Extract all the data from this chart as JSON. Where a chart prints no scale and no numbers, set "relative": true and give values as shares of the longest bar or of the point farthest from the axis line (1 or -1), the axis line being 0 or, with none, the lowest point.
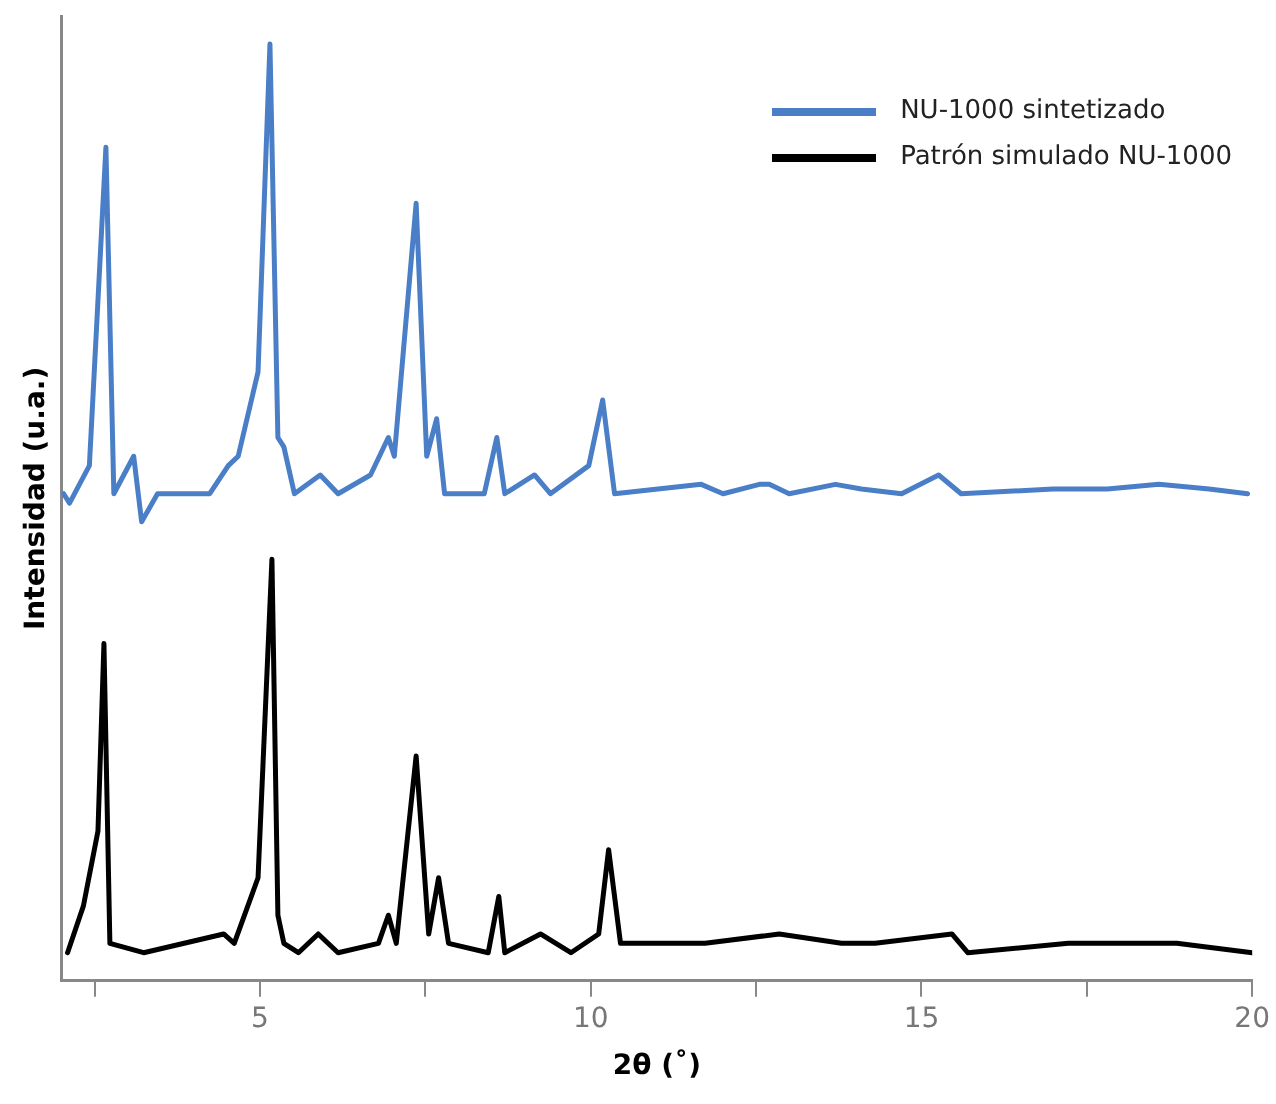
{
  "chart_data": {
    "type": "line",
    "relative": true,
    "xlabel": "2θ (˚)",
    "ylabel": "Intensidad (u.a.)",
    "xlim": [
      2,
      20
    ],
    "xticks": [
      {
        "value": 2.5,
        "label": null
      },
      5,
      {
        "value": 7.5,
        "label": null
      },
      10,
      {
        "value": 12.5,
        "label": null
      },
      15,
      {
        "value": 17.5,
        "label": null
      },
      20
    ],
    "legend": "top right",
    "grid": false,
    "marker": "none",
    "line_style": "solid",
    "series": [
      {
        "name": "NU-1000 sintetizado",
        "color": "#4a7fc8",
        "x": [
          2.03,
          2.12,
          2.42,
          2.67,
          2.79,
          3.09,
          3.21,
          3.45,
          4.24,
          4.52,
          4.67,
          4.97,
          5.15,
          5.27,
          5.36,
          5.52,
          5.91,
          6.18,
          6.67,
          6.94,
          7.03,
          7.36,
          7.52,
          7.67,
          7.79,
          8.39,
          8.58,
          8.7,
          9.15,
          9.39,
          9.97,
          10.18,
          10.36,
          11.67,
          12.0,
          12.55,
          12.7,
          13.0,
          13.7,
          14.09,
          14.7,
          15.26,
          15.6,
          16.99,
          17.81,
          18.59,
          19.35,
          19.93
        ],
        "values": [
          0.52,
          0.51,
          0.55,
          0.89,
          0.52,
          0.56,
          0.49,
          0.52,
          0.52,
          0.55,
          0.56,
          0.65,
          1.0,
          0.58,
          0.57,
          0.52,
          0.54,
          0.52,
          0.54,
          0.58,
          0.56,
          0.83,
          0.56,
          0.6,
          0.52,
          0.52,
          0.58,
          0.52,
          0.54,
          0.52,
          0.55,
          0.62,
          0.52,
          0.53,
          0.52,
          0.53,
          0.53,
          0.52,
          0.53,
          0.525,
          0.52,
          0.54,
          0.52,
          0.525,
          0.525,
          0.53,
          0.525,
          0.52
        ]
      },
      {
        "name": "Patrón simulado NU-1000",
        "color": "#000000",
        "x": [
          2.09,
          2.33,
          2.55,
          2.64,
          2.73,
          3.24,
          4.45,
          4.61,
          4.97,
          5.18,
          5.27,
          5.36,
          5.58,
          5.88,
          6.18,
          6.79,
          6.94,
          7.06,
          7.36,
          7.55,
          7.7,
          7.85,
          8.45,
          8.61,
          8.7,
          9.24,
          9.7,
          10.12,
          10.27,
          10.36,
          10.45,
          11.73,
          12.85,
          13.79,
          14.3,
          15.46,
          15.7,
          17.22,
          18.86,
          20
        ],
        "values": [
          0.03,
          0.08,
          0.16,
          0.36,
          0.04,
          0.03,
          0.05,
          0.04,
          0.11,
          0.45,
          0.07,
          0.04,
          0.03,
          0.05,
          0.03,
          0.04,
          0.07,
          0.04,
          0.24,
          0.05,
          0.11,
          0.04,
          0.03,
          0.09,
          0.03,
          0.05,
          0.03,
          0.05,
          0.14,
          0.09,
          0.04,
          0.04,
          0.05,
          0.04,
          0.04,
          0.05,
          0.03,
          0.04,
          0.04,
          0.03
        ]
      }
    ]
  }
}
